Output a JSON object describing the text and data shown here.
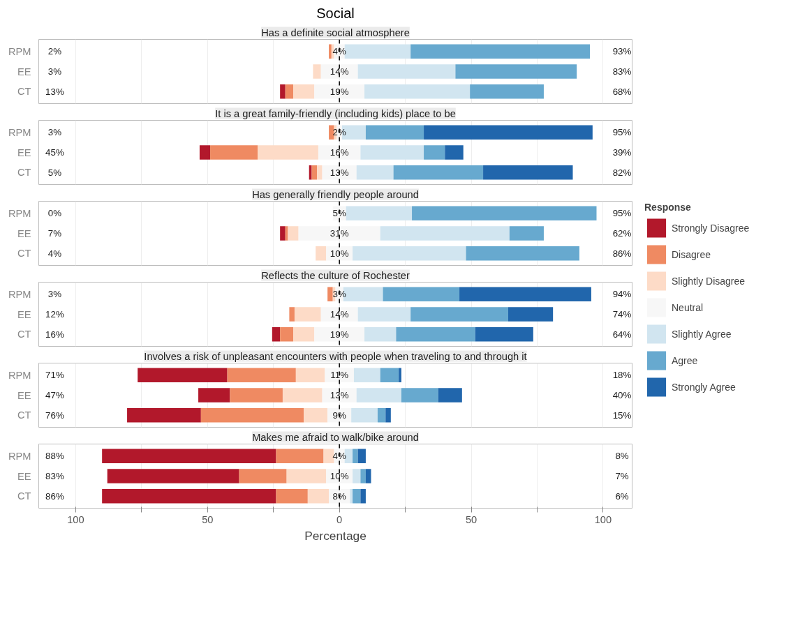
{
  "chart_data": [
    {
      "type": "bar",
      "orientation": "horizontal",
      "title": "Social",
      "subtitle": "Has a definite social atmosphere",
      "legend": "right",
      "legend_title": "Response",
      "grid": "x",
      "tick_labels": "y",
      "categories": [
        "RPM",
        "EE",
        "CT"
      ],
      "xlim": [
        -114,
        111
      ],
      "xticks": [
        {
          "value": -100,
          "label": null
        },
        {
          "value": -75,
          "label": null
        },
        {
          "value": -50,
          "label": null
        },
        {
          "value": -25,
          "label": null
        },
        {
          "value": 0,
          "label": null
        },
        {
          "value": 25,
          "label": null
        },
        {
          "value": 50,
          "label": null
        },
        {
          "value": 75,
          "label": null
        },
        {
          "value": 100,
          "label": null
        }
      ],
      "ref_lines": [
        {
          "axis": "x",
          "value": 0,
          "label": null,
          "color": "#000000",
          "line_style": "dashed"
        }
      ],
      "series": [
        {
          "name": "Strongly Disagree",
          "color": "#b2182b",
          "values": [
            null,
            null,
            2
          ],
          "base": [
            null,
            null,
            -22.5
          ]
        },
        {
          "name": "Disagree",
          "color": "#ef8a62",
          "values": [
            1,
            null,
            3
          ],
          "base": [
            -4,
            null,
            -20.5
          ]
        },
        {
          "name": "Slightly Disagree",
          "color": "#fddbc7",
          "values": [
            1,
            3,
            8
          ],
          "base": [
            -3,
            -10,
            -17.5
          ]
        },
        {
          "name": "Neutral",
          "color": "#f7f7f7",
          "values": [
            4,
            14,
            19
          ],
          "base": [
            -2,
            -7,
            -9.5
          ],
          "value_labels": [
            "4%",
            "14%",
            "19%"
          ]
        },
        {
          "name": "Slightly Agree",
          "color": "#d1e5f0",
          "values": [
            25,
            37,
            40
          ],
          "base": [
            2,
            7,
            9.5
          ]
        },
        {
          "name": "Agree",
          "color": "#67a9cf",
          "values": [
            68,
            46,
            28
          ],
          "base": [
            27,
            44,
            49.5
          ]
        },
        {
          "name": "Strongly Agree",
          "color": "#2166ac",
          "values": [
            null,
            null,
            null
          ],
          "base": [
            null,
            null,
            null
          ]
        }
      ],
      "annotations": [
        "2%",
        "3%",
        "13%",
        "93%",
        "83%",
        "68%"
      ]
    },
    {
      "type": "bar",
      "orientation": "horizontal",
      "subtitle": "It is a great family-friendly (including kids) place to be",
      "grid": "x",
      "tick_labels": "y",
      "categories": [
        "RPM",
        "EE",
        "CT"
      ],
      "xlim": [
        -114,
        111
      ],
      "xticks": [
        {
          "value": -100,
          "label": null
        },
        {
          "value": -75,
          "label": null
        },
        {
          "value": -50,
          "label": null
        },
        {
          "value": -25,
          "label": null
        },
        {
          "value": 0,
          "label": null
        },
        {
          "value": 25,
          "label": null
        },
        {
          "value": 50,
          "label": null
        },
        {
          "value": 75,
          "label": null
        },
        {
          "value": 100,
          "label": null
        }
      ],
      "ref_lines": [
        {
          "axis": "x",
          "value": 0,
          "label": null,
          "color": "#000000",
          "line_style": "dashed"
        }
      ],
      "series": [
        {
          "color": "#b2182b",
          "values": [
            null,
            4,
            1
          ],
          "base": [
            null,
            -53,
            -11.5
          ]
        },
        {
          "color": "#ef8a62",
          "values": [
            2,
            18,
            2
          ],
          "base": [
            -4,
            -49,
            -10.5
          ]
        },
        {
          "color": "#fddbc7",
          "values": [
            1,
            23,
            2
          ],
          "base": [
            -2,
            -31,
            -8.5
          ]
        },
        {
          "color": "#f7f7f7",
          "values": [
            2,
            16,
            13
          ],
          "base": [
            -1,
            -8,
            -6.5
          ],
          "value_labels": [
            "2%",
            "16%",
            "13%"
          ]
        },
        {
          "color": "#d1e5f0",
          "values": [
            9,
            24,
            14
          ],
          "base": [
            1,
            8,
            6.5
          ]
        },
        {
          "color": "#67a9cf",
          "values": [
            22,
            8,
            34
          ],
          "base": [
            10,
            32,
            20.5
          ]
        },
        {
          "color": "#2166ac",
          "values": [
            64,
            7,
            34
          ],
          "base": [
            32,
            40,
            54.5
          ]
        }
      ],
      "annotations": [
        "3%",
        "45%",
        "5%",
        "95%",
        "39%",
        "82%"
      ]
    },
    {
      "type": "bar",
      "orientation": "horizontal",
      "subtitle": "Has generally friendly people around",
      "grid": "x",
      "tick_labels": "y",
      "categories": [
        "RPM",
        "EE",
        "CT"
      ],
      "xlim": [
        -114,
        111
      ],
      "xticks": [
        {
          "value": -100,
          "label": null
        },
        {
          "value": -75,
          "label": null
        },
        {
          "value": -50,
          "label": null
        },
        {
          "value": -25,
          "label": null
        },
        {
          "value": 0,
          "label": null
        },
        {
          "value": 25,
          "label": null
        },
        {
          "value": 50,
          "label": null
        },
        {
          "value": 75,
          "label": null
        },
        {
          "value": 100,
          "label": null
        }
      ],
      "ref_lines": [
        {
          "axis": "x",
          "value": 0,
          "label": null,
          "color": "#000000",
          "line_style": "dashed"
        }
      ],
      "series": [
        {
          "color": "#b2182b",
          "values": [
            null,
            2,
            null
          ],
          "base": [
            null,
            -22.5,
            null
          ]
        },
        {
          "color": "#ef8a62",
          "values": [
            null,
            1,
            null
          ],
          "base": [
            null,
            -20.5,
            null
          ]
        },
        {
          "color": "#fddbc7",
          "values": [
            null,
            4,
            4
          ],
          "base": [
            null,
            -19.5,
            -9
          ]
        },
        {
          "color": "#f7f7f7",
          "values": [
            5,
            31,
            10
          ],
          "base": [
            -2.5,
            -15.5,
            -5
          ],
          "value_labels": [
            "5%",
            "31%",
            "10%"
          ]
        },
        {
          "color": "#d1e5f0",
          "values": [
            25,
            49,
            43
          ],
          "base": [
            2.5,
            15.5,
            5
          ]
        },
        {
          "color": "#67a9cf",
          "values": [
            70,
            13,
            43
          ],
          "base": [
            27.5,
            64.5,
            48
          ]
        }
      ],
      "annotations": [
        "0%",
        "7%",
        "4%",
        "95%",
        "62%",
        "86%"
      ]
    },
    {
      "type": "bar",
      "orientation": "horizontal",
      "subtitle": "Reflects the culture of Rochester",
      "grid": "x",
      "tick_labels": "y",
      "categories": [
        "RPM",
        "EE",
        "CT"
      ],
      "xlim": [
        -114,
        111
      ],
      "xticks": [
        {
          "value": -100,
          "label": null
        },
        {
          "value": -75,
          "label": null
        },
        {
          "value": -50,
          "label": null
        },
        {
          "value": -25,
          "label": null
        },
        {
          "value": 0,
          "label": null
        },
        {
          "value": 25,
          "label": null
        },
        {
          "value": 50,
          "label": null
        },
        {
          "value": 75,
          "label": null
        },
        {
          "value": 100,
          "label": null
        }
      ],
      "ref_lines": [
        {
          "axis": "x",
          "value": 0,
          "label": null,
          "color": "#000000",
          "line_style": "dashed"
        }
      ],
      "series": [
        {
          "color": "#b2182b",
          "values": [
            null,
            null,
            3
          ],
          "base": [
            null,
            null,
            -25.5
          ]
        },
        {
          "color": "#ef8a62",
          "values": [
            2,
            2,
            5
          ],
          "base": [
            -4.5,
            -19,
            -22.5
          ]
        },
        {
          "color": "#fddbc7",
          "values": [
            1,
            10,
            8
          ],
          "base": [
            -2.5,
            -17,
            -17.5
          ]
        },
        {
          "color": "#f7f7f7",
          "values": [
            3,
            14,
            19
          ],
          "base": [
            -1.5,
            -7,
            -9.5
          ],
          "value_labels": [
            "3%",
            "14%",
            "19%"
          ]
        },
        {
          "color": "#d1e5f0",
          "values": [
            15,
            20,
            12
          ],
          "base": [
            1.5,
            7,
            9.5
          ]
        },
        {
          "color": "#67a9cf",
          "values": [
            29,
            37,
            30
          ],
          "base": [
            16.5,
            27,
            21.5
          ]
        },
        {
          "color": "#2166ac",
          "values": [
            50,
            17,
            22
          ],
          "base": [
            45.5,
            64,
            51.5
          ]
        }
      ],
      "annotations": [
        "3%",
        "12%",
        "16%",
        "94%",
        "74%",
        "64%"
      ]
    },
    {
      "type": "bar",
      "orientation": "horizontal",
      "subtitle": "Involves a risk of unpleasant encounters with people when traveling to and through it",
      "grid": "x",
      "tick_labels": "y",
      "categories": [
        "RPM",
        "EE",
        "CT"
      ],
      "xlim": [
        -114,
        111
      ],
      "xticks": [
        {
          "value": -100,
          "label": null
        },
        {
          "value": -75,
          "label": null
        },
        {
          "value": -50,
          "label": null
        },
        {
          "value": -25,
          "label": null
        },
        {
          "value": 0,
          "label": null
        },
        {
          "value": 25,
          "label": null
        },
        {
          "value": 50,
          "label": null
        },
        {
          "value": 75,
          "label": null
        },
        {
          "value": 100,
          "label": null
        }
      ],
      "ref_lines": [
        {
          "axis": "x",
          "value": 0,
          "label": null,
          "color": "#000000",
          "line_style": "dashed"
        }
      ],
      "series": [
        {
          "color": "#b2182b",
          "values": [
            34,
            12,
            28
          ],
          "base": [
            -76.5,
            -53.5,
            -80.5
          ]
        },
        {
          "color": "#ef8a62",
          "values": [
            26,
            20,
            39
          ],
          "base": [
            -42.5,
            -41.5,
            -52.5
          ]
        },
        {
          "color": "#fddbc7",
          "values": [
            11,
            15,
            9
          ],
          "base": [
            -16.5,
            -21.5,
            -13.5
          ]
        },
        {
          "color": "#f7f7f7",
          "values": [
            11,
            13,
            9
          ],
          "base": [
            -5.5,
            -6.5,
            -4.5
          ],
          "value_labels": [
            "11%",
            "13%",
            "9%"
          ]
        },
        {
          "color": "#d1e5f0",
          "values": [
            10,
            17,
            10
          ],
          "base": [
            5.5,
            6.5,
            4.5
          ]
        },
        {
          "color": "#67a9cf",
          "values": [
            7,
            14,
            3
          ],
          "base": [
            15.5,
            23.5,
            14.5
          ]
        },
        {
          "color": "#2166ac",
          "values": [
            1,
            9,
            2
          ],
          "base": [
            22.5,
            37.5,
            17.5
          ]
        }
      ],
      "annotations": [
        "71%",
        "47%",
        "76%",
        "18%",
        "40%",
        "15%"
      ]
    },
    {
      "type": "bar",
      "orientation": "horizontal",
      "subtitle": "Makes me afraid to walk/bike around",
      "xlabel": "Percentage",
      "grid": "x",
      "categories": [
        "RPM",
        "EE",
        "CT"
      ],
      "xlim": [
        -114,
        111
      ],
      "xticks": [
        {
          "value": -100,
          "label": "100"
        },
        {
          "value": -75,
          "label": null
        },
        {
          "value": -50,
          "label": "50"
        },
        {
          "value": -25,
          "label": null
        },
        0,
        {
          "value": 25,
          "label": null
        },
        50,
        {
          "value": 75,
          "label": null
        },
        100
      ],
      "ref_lines": [
        {
          "axis": "x",
          "value": 0,
          "label": null,
          "color": "#000000",
          "line_style": "dashed"
        }
      ],
      "series": [
        {
          "color": "#b2182b",
          "values": [
            66,
            50,
            66
          ],
          "base": [
            -90,
            -88,
            -90
          ]
        },
        {
          "color": "#ef8a62",
          "values": [
            18,
            18,
            12
          ],
          "base": [
            -24,
            -38,
            -24
          ]
        },
        {
          "color": "#fddbc7",
          "values": [
            4,
            15,
            8
          ],
          "base": [
            -6,
            -20,
            -12
          ]
        },
        {
          "color": "#f7f7f7",
          "values": [
            4,
            10,
            8
          ],
          "base": [
            -2,
            -5,
            -4
          ],
          "value_labels": [
            "4%",
            "10%",
            "8%"
          ]
        },
        {
          "color": "#d1e5f0",
          "values": [
            3,
            3,
            1
          ],
          "base": [
            2,
            5,
            4
          ]
        },
        {
          "color": "#67a9cf",
          "values": [
            2,
            2,
            3
          ],
          "base": [
            5,
            8,
            5
          ]
        },
        {
          "color": "#2166ac",
          "values": [
            3,
            2,
            2
          ],
          "base": [
            7,
            10,
            8
          ]
        }
      ],
      "annotations": [
        "88%",
        "83%",
        "86%",
        "8%",
        "7%",
        "6%"
      ]
    }
  ]
}
